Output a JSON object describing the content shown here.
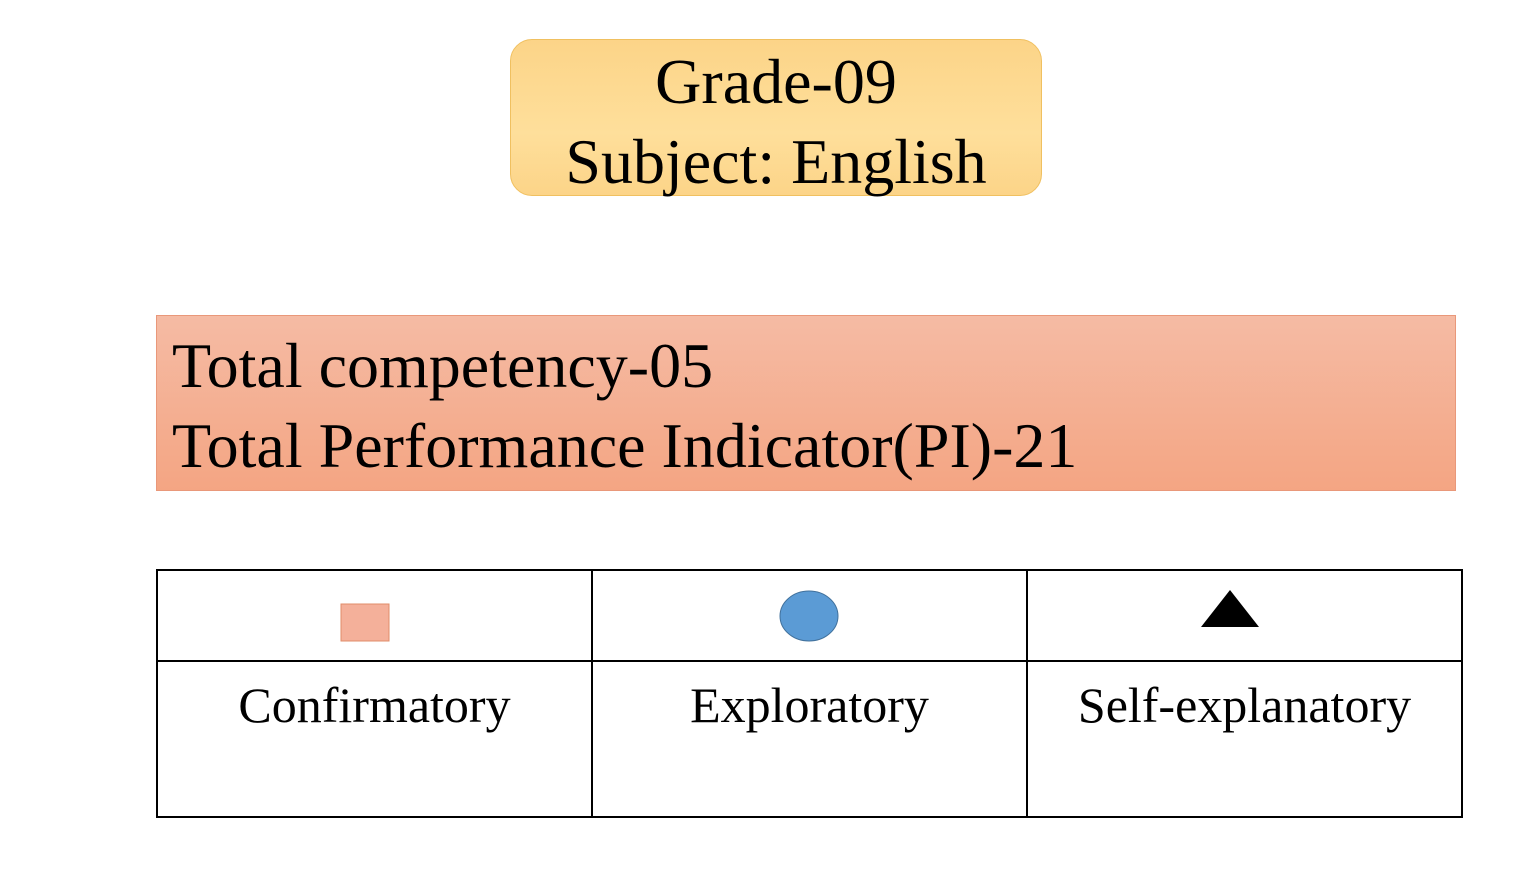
{
  "header": {
    "lines": [
      "Grade-09",
      "Subject: English"
    ]
  },
  "summary": {
    "lines": [
      "Total competency-05",
      "Total Performance Indicator(PI)-21"
    ]
  },
  "legend": {
    "labels": [
      "Confirmatory",
      "Exploratory",
      "Self-explanatory"
    ]
  }
}
